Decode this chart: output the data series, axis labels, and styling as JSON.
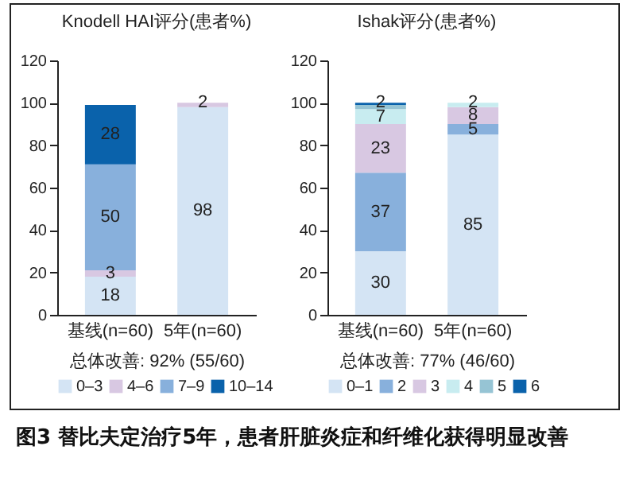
{
  "chart_data": [
    {
      "type": "bar",
      "title": "Knodell HAI评分(患者%)",
      "categories": [
        "基线(n=60)",
        "5年(n=60)"
      ],
      "stacked": true,
      "ylim": [
        0,
        120
      ],
      "yticks": [
        0,
        20,
        40,
        60,
        80,
        100,
        120
      ],
      "legend": "bottom",
      "grid": false,
      "annotations": [
        "总体改善: 92% (55/60)"
      ],
      "series": [
        {
          "name": "0–3",
          "color": "#d4e4f4",
          "values": [
            18,
            98
          ],
          "value_labels": [
            "18",
            "98"
          ]
        },
        {
          "name": "4–6",
          "color": "#d8c8e2",
          "values": [
            3,
            2
          ],
          "value_labels": [
            "3",
            "2"
          ]
        },
        {
          "name": "7–9",
          "color": "#88b0dc",
          "values": [
            50,
            null
          ],
          "value_labels": [
            "50",
            null
          ]
        },
        {
          "name": "10–14",
          "color": "#0a62ab",
          "values": [
            28,
            null
          ],
          "value_labels": [
            "28",
            null
          ]
        }
      ]
    },
    {
      "type": "bar",
      "title": "Ishak评分(患者%)",
      "categories": [
        "基线(n=60)",
        "5年(n=60)"
      ],
      "stacked": true,
      "ylim": [
        0,
        120
      ],
      "yticks": [
        0,
        20,
        40,
        60,
        80,
        100,
        120
      ],
      "legend": "bottom",
      "grid": false,
      "annotations": [
        "总体改善: 77% (46/60)",
        "图3 替比夫定治疗5年，患者肝脏炎症和纤维化获得明显改善"
      ],
      "series": [
        {
          "name": "0–1",
          "color": "#d4e4f4",
          "values": [
            30,
            85
          ],
          "value_labels": [
            "30",
            "85"
          ]
        },
        {
          "name": "2",
          "color": "#88b0dc",
          "values": [
            37,
            5
          ],
          "value_labels": [
            "37",
            "5"
          ]
        },
        {
          "name": "3",
          "color": "#d8c8e2",
          "values": [
            23,
            8
          ],
          "value_labels": [
            "23",
            "8"
          ]
        },
        {
          "name": "4",
          "color": "#c8ecf0",
          "values": [
            7,
            2
          ],
          "value_labels": [
            "7",
            "2"
          ]
        },
        {
          "name": "5",
          "color": "#96c4d4",
          "values": [
            2,
            null
          ],
          "value_labels": [
            "2",
            null
          ]
        },
        {
          "name": "6",
          "color": "#0a62ab",
          "values": [
            1,
            null
          ],
          "value_labels": [
            null,
            null
          ]
        }
      ]
    }
  ]
}
